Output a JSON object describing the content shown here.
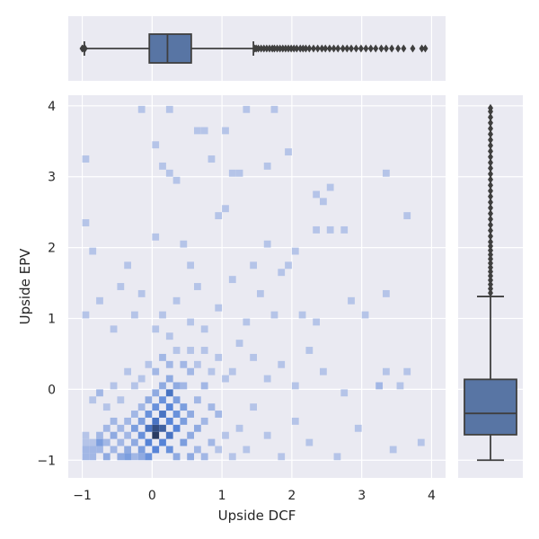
{
  "chart_data": {
    "type": "jointplot",
    "xlabel": "Upside DCF",
    "ylabel": "Upside EPV",
    "xlim": [
      -1.2,
      4.2
    ],
    "ylim": [
      -1.25,
      4.15
    ],
    "x_ticks": [
      -1,
      0,
      1,
      2,
      3,
      4
    ],
    "y_ticks": [
      -1,
      0,
      1,
      2,
      3,
      4
    ],
    "x_tick_labels": [
      "−1",
      "0",
      "1",
      "2",
      "3",
      "4"
    ],
    "y_tick_labels": [
      "−1",
      "0",
      "1",
      "2",
      "3",
      "4"
    ],
    "grid": true,
    "colors": {
      "panel_bg": "#eaeaf2",
      "grid": "#ffffff",
      "box_fill": "#5875a4",
      "box_line": "#3f3f3f",
      "hist_low": "#b5c4e8",
      "hist_mid": "#4f7fd6",
      "hist_high": "#2a3c62"
    },
    "histogram_2d": {
      "bin_size": 0.1,
      "cells": [
        {
          "x": -0.95,
          "y": -0.95,
          "level": 2
        },
        {
          "x": -0.95,
          "y": -0.85,
          "level": 2
        },
        {
          "x": -0.95,
          "y": -0.75,
          "level": 1
        },
        {
          "x": -0.95,
          "y": -0.65,
          "level": 1
        },
        {
          "x": -0.85,
          "y": -0.95,
          "level": 2
        },
        {
          "x": -0.85,
          "y": -0.85,
          "level": 2
        },
        {
          "x": -0.85,
          "y": -0.75,
          "level": 1
        },
        {
          "x": -0.75,
          "y": -0.75,
          "level": 4
        },
        {
          "x": -0.75,
          "y": -0.85,
          "level": 2
        },
        {
          "x": -0.75,
          "y": -0.65,
          "level": 2
        },
        {
          "x": -0.65,
          "y": -0.95,
          "level": 3
        },
        {
          "x": -0.65,
          "y": -0.75,
          "level": 2
        },
        {
          "x": -0.65,
          "y": -0.55,
          "level": 2
        },
        {
          "x": -0.55,
          "y": -0.85,
          "level": 2
        },
        {
          "x": -0.55,
          "y": -0.65,
          "level": 3
        },
        {
          "x": -0.55,
          "y": -0.45,
          "level": 2
        },
        {
          "x": -0.45,
          "y": -0.95,
          "level": 3
        },
        {
          "x": -0.45,
          "y": -0.75,
          "level": 2
        },
        {
          "x": -0.45,
          "y": -0.55,
          "level": 2
        },
        {
          "x": -0.35,
          "y": -0.95,
          "level": 4
        },
        {
          "x": -0.35,
          "y": -0.85,
          "level": 3
        },
        {
          "x": -0.35,
          "y": -0.65,
          "level": 2
        },
        {
          "x": -0.35,
          "y": -0.45,
          "level": 2
        },
        {
          "x": -0.25,
          "y": -0.95,
          "level": 2
        },
        {
          "x": -0.25,
          "y": -0.75,
          "level": 3
        },
        {
          "x": -0.25,
          "y": -0.55,
          "level": 4
        },
        {
          "x": -0.25,
          "y": -0.35,
          "level": 2
        },
        {
          "x": -0.15,
          "y": -0.95,
          "level": 3
        },
        {
          "x": -0.15,
          "y": -0.85,
          "level": 4
        },
        {
          "x": -0.15,
          "y": -0.65,
          "level": 5
        },
        {
          "x": -0.15,
          "y": -0.45,
          "level": 4
        },
        {
          "x": -0.15,
          "y": -0.25,
          "level": 2
        },
        {
          "x": -0.05,
          "y": -0.95,
          "level": 5
        },
        {
          "x": -0.05,
          "y": -0.75,
          "level": 6
        },
        {
          "x": -0.05,
          "y": -0.55,
          "level": 7
        },
        {
          "x": -0.05,
          "y": -0.35,
          "level": 5
        },
        {
          "x": -0.05,
          "y": -0.15,
          "level": 3
        },
        {
          "x": 0.05,
          "y": -0.85,
          "level": 6
        },
        {
          "x": 0.05,
          "y": -0.65,
          "level": 10
        },
        {
          "x": 0.05,
          "y": -0.55,
          "level": 9
        },
        {
          "x": 0.05,
          "y": -0.45,
          "level": 7
        },
        {
          "x": 0.05,
          "y": -0.25,
          "level": 5
        },
        {
          "x": 0.05,
          "y": -0.05,
          "level": 3
        },
        {
          "x": 0.15,
          "y": -0.75,
          "level": 6
        },
        {
          "x": 0.15,
          "y": -0.55,
          "level": 8
        },
        {
          "x": 0.15,
          "y": -0.35,
          "level": 7
        },
        {
          "x": 0.15,
          "y": -0.15,
          "level": 5
        },
        {
          "x": 0.15,
          "y": 0.05,
          "level": 3
        },
        {
          "x": 0.25,
          "y": -0.85,
          "level": 5
        },
        {
          "x": 0.25,
          "y": -0.65,
          "level": 7
        },
        {
          "x": 0.25,
          "y": -0.45,
          "level": 6
        },
        {
          "x": 0.25,
          "y": -0.25,
          "level": 6
        },
        {
          "x": 0.25,
          "y": -0.05,
          "level": 7
        },
        {
          "x": 0.25,
          "y": 0.15,
          "level": 3
        },
        {
          "x": 0.35,
          "y": -0.95,
          "level": 3
        },
        {
          "x": 0.35,
          "y": -0.55,
          "level": 6
        },
        {
          "x": 0.35,
          "y": -0.35,
          "level": 5
        },
        {
          "x": 0.35,
          "y": -0.15,
          "level": 4
        },
        {
          "x": 0.35,
          "y": 0.05,
          "level": 3
        },
        {
          "x": 0.45,
          "y": -0.75,
          "level": 4
        },
        {
          "x": 0.45,
          "y": -0.45,
          "level": 4
        },
        {
          "x": 0.45,
          "y": -0.25,
          "level": 4
        },
        {
          "x": 0.45,
          "y": 0.05,
          "level": 2
        },
        {
          "x": 0.55,
          "y": -0.95,
          "level": 3
        },
        {
          "x": 0.55,
          "y": -0.65,
          "level": 3
        },
        {
          "x": 0.55,
          "y": -0.35,
          "level": 3
        },
        {
          "x": 0.55,
          "y": 0.25,
          "level": 2
        },
        {
          "x": 0.65,
          "y": -0.85,
          "level": 2
        },
        {
          "x": 0.65,
          "y": -0.55,
          "level": 3
        },
        {
          "x": 0.65,
          "y": -0.15,
          "level": 2
        },
        {
          "x": 0.75,
          "y": -0.95,
          "level": 2
        },
        {
          "x": 0.75,
          "y": -0.45,
          "level": 2
        },
        {
          "x": 0.75,
          "y": 0.05,
          "level": 2
        },
        {
          "x": 0.85,
          "y": -0.75,
          "level": 2
        },
        {
          "x": 0.85,
          "y": -0.25,
          "level": 2
        },
        {
          "x": 0.95,
          "y": -0.85,
          "level": 1
        },
        {
          "x": 0.95,
          "y": -0.35,
          "level": 2
        },
        {
          "x": 1.05,
          "y": -0.65,
          "level": 1
        },
        {
          "x": 1.05,
          "y": 0.15,
          "level": 1
        },
        {
          "x": 1.15,
          "y": -0.95,
          "level": 1
        },
        {
          "x": 1.25,
          "y": -0.55,
          "level": 1
        },
        {
          "x": 1.35,
          "y": -0.85,
          "level": 1
        },
        {
          "x": 1.45,
          "y": -0.25,
          "level": 1
        },
        {
          "x": 1.65,
          "y": -0.65,
          "level": 1
        },
        {
          "x": 1.85,
          "y": -0.95,
          "level": 1
        },
        {
          "x": 2.05,
          "y": -0.45,
          "level": 1
        },
        {
          "x": 2.25,
          "y": -0.75,
          "level": 1
        },
        {
          "x": 2.65,
          "y": -0.95,
          "level": 1
        },
        {
          "x": 2.95,
          "y": -0.55,
          "level": 1
        },
        {
          "x": 3.45,
          "y": -0.85,
          "level": 1
        },
        {
          "x": 3.85,
          "y": -0.75,
          "level": 1
        },
        {
          "x": -0.85,
          "y": -0.15,
          "level": 1
        },
        {
          "x": -0.75,
          "y": -0.05,
          "level": 2
        },
        {
          "x": -0.65,
          "y": -0.25,
          "level": 1
        },
        {
          "x": -0.55,
          "y": 0.05,
          "level": 1
        },
        {
          "x": -0.45,
          "y": -0.15,
          "level": 1
        },
        {
          "x": -0.35,
          "y": 0.25,
          "level": 1
        },
        {
          "x": -0.25,
          "y": 0.05,
          "level": 1
        },
        {
          "x": -0.15,
          "y": 0.15,
          "level": 1
        },
        {
          "x": -0.05,
          "y": 0.35,
          "level": 1
        },
        {
          "x": 0.05,
          "y": 0.25,
          "level": 2
        },
        {
          "x": 0.15,
          "y": 0.45,
          "level": 2
        },
        {
          "x": 0.25,
          "y": 0.35,
          "level": 2
        },
        {
          "x": 0.35,
          "y": 0.55,
          "level": 1
        },
        {
          "x": 0.45,
          "y": 0.35,
          "level": 2
        },
        {
          "x": 0.55,
          "y": 0.55,
          "level": 1
        },
        {
          "x": 0.65,
          "y": 0.35,
          "level": 1
        },
        {
          "x": 0.75,
          "y": 0.55,
          "level": 1
        },
        {
          "x": 0.85,
          "y": 0.25,
          "level": 1
        },
        {
          "x": 0.95,
          "y": 0.45,
          "level": 1
        },
        {
          "x": 1.15,
          "y": 0.25,
          "level": 1
        },
        {
          "x": 1.25,
          "y": 0.65,
          "level": 1
        },
        {
          "x": 1.45,
          "y": 0.45,
          "level": 1
        },
        {
          "x": 1.65,
          "y": 0.15,
          "level": 1
        },
        {
          "x": 1.85,
          "y": 0.35,
          "level": 1
        },
        {
          "x": 2.05,
          "y": 0.05,
          "level": 1
        },
        {
          "x": 2.25,
          "y": 0.55,
          "level": 1
        },
        {
          "x": 2.45,
          "y": 0.25,
          "level": 1
        },
        {
          "x": 2.75,
          "y": -0.05,
          "level": 1
        },
        {
          "x": 3.25,
          "y": 0.05,
          "level": 2
        },
        {
          "x": 3.35,
          "y": 0.25,
          "level": 1
        },
        {
          "x": 3.65,
          "y": 0.25,
          "level": 1
        },
        {
          "x": 3.55,
          "y": 0.05,
          "level": 1
        },
        {
          "x": -0.95,
          "y": 1.05,
          "level": 1
        },
        {
          "x": -0.75,
          "y": 1.25,
          "level": 1
        },
        {
          "x": -0.55,
          "y": 0.85,
          "level": 1
        },
        {
          "x": -0.45,
          "y": 1.45,
          "level": 1
        },
        {
          "x": -0.25,
          "y": 1.05,
          "level": 1
        },
        {
          "x": -0.15,
          "y": 1.35,
          "level": 1
        },
        {
          "x": 0.05,
          "y": 0.85,
          "level": 1
        },
        {
          "x": 0.15,
          "y": 1.05,
          "level": 1
        },
        {
          "x": 0.25,
          "y": 0.75,
          "level": 1
        },
        {
          "x": 0.35,
          "y": 1.25,
          "level": 1
        },
        {
          "x": 0.55,
          "y": 0.95,
          "level": 1
        },
        {
          "x": 0.65,
          "y": 1.45,
          "level": 1
        },
        {
          "x": 0.75,
          "y": 0.85,
          "level": 1
        },
        {
          "x": 0.95,
          "y": 1.15,
          "level": 1
        },
        {
          "x": 1.15,
          "y": 1.55,
          "level": 1
        },
        {
          "x": 1.35,
          "y": 0.95,
          "level": 1
        },
        {
          "x": 1.55,
          "y": 1.35,
          "level": 1
        },
        {
          "x": 1.75,
          "y": 1.05,
          "level": 1
        },
        {
          "x": 1.95,
          "y": 1.75,
          "level": 1
        },
        {
          "x": 2.15,
          "y": 1.05,
          "level": 1
        },
        {
          "x": 2.35,
          "y": 0.95,
          "level": 1
        },
        {
          "x": 2.85,
          "y": 1.25,
          "level": 1
        },
        {
          "x": 3.05,
          "y": 1.05,
          "level": 1
        },
        {
          "x": 3.35,
          "y": 1.35,
          "level": 1
        },
        {
          "x": -0.95,
          "y": 2.35,
          "level": 1
        },
        {
          "x": -0.85,
          "y": 1.95,
          "level": 1
        },
        {
          "x": -0.35,
          "y": 1.75,
          "level": 1
        },
        {
          "x": 0.05,
          "y": 2.15,
          "level": 1
        },
        {
          "x": 0.45,
          "y": 2.05,
          "level": 1
        },
        {
          "x": 0.55,
          "y": 1.75,
          "level": 1
        },
        {
          "x": 0.95,
          "y": 2.45,
          "level": 1
        },
        {
          "x": 1.05,
          "y": 2.55,
          "level": 1
        },
        {
          "x": 1.45,
          "y": 1.75,
          "level": 1
        },
        {
          "x": 1.65,
          "y": 2.05,
          "level": 1
        },
        {
          "x": 1.85,
          "y": 1.65,
          "level": 1
        },
        {
          "x": 2.05,
          "y": 1.95,
          "level": 1
        },
        {
          "x": 2.35,
          "y": 2.25,
          "level": 1
        },
        {
          "x": 2.55,
          "y": 2.25,
          "level": 1
        },
        {
          "x": 2.75,
          "y": 2.25,
          "level": 1
        },
        {
          "x": 2.45,
          "y": 2.65,
          "level": 1
        },
        {
          "x": 3.65,
          "y": 2.45,
          "level": 1
        },
        {
          "x": -0.95,
          "y": 3.25,
          "level": 1
        },
        {
          "x": -0.15,
          "y": 3.95,
          "level": 1
        },
        {
          "x": 0.05,
          "y": 3.45,
          "level": 1
        },
        {
          "x": 0.15,
          "y": 3.15,
          "level": 1
        },
        {
          "x": 0.25,
          "y": 3.05,
          "level": 1
        },
        {
          "x": 0.35,
          "y": 2.95,
          "level": 1
        },
        {
          "x": 0.25,
          "y": 3.95,
          "level": 1
        },
        {
          "x": 0.65,
          "y": 3.65,
          "level": 1
        },
        {
          "x": 0.75,
          "y": 3.65,
          "level": 1
        },
        {
          "x": 0.85,
          "y": 3.25,
          "level": 1
        },
        {
          "x": 1.05,
          "y": 3.65,
          "level": 1
        },
        {
          "x": 1.15,
          "y": 3.05,
          "level": 1
        },
        {
          "x": 1.25,
          "y": 3.05,
          "level": 1
        },
        {
          "x": 1.35,
          "y": 3.95,
          "level": 1
        },
        {
          "x": 1.65,
          "y": 3.15,
          "level": 1
        },
        {
          "x": 1.75,
          "y": 3.95,
          "level": 1
        },
        {
          "x": 1.95,
          "y": 3.35,
          "level": 1
        },
        {
          "x": 2.35,
          "y": 2.75,
          "level": 1
        },
        {
          "x": 2.55,
          "y": 2.85,
          "level": 1
        },
        {
          "x": 3.35,
          "y": 3.05,
          "level": 1
        }
      ]
    },
    "marginal_x_box": {
      "whisker_low": -0.97,
      "q1": -0.04,
      "median": 0.22,
      "q3": 0.56,
      "whisker_high": 1.45,
      "outliers": [
        -1.0,
        -0.98,
        -0.96,
        1.47,
        1.49,
        1.52,
        1.56,
        1.6,
        1.64,
        1.68,
        1.72,
        1.75,
        1.79,
        1.83,
        1.87,
        1.91,
        1.95,
        1.99,
        2.03,
        2.07,
        2.12,
        2.16,
        2.2,
        2.25,
        2.31,
        2.37,
        2.43,
        2.48,
        2.54,
        2.6,
        2.66,
        2.73,
        2.79,
        2.85,
        2.92,
        2.99,
        3.06,
        3.13,
        3.2,
        3.28,
        3.35,
        3.43,
        3.52,
        3.6,
        3.73,
        3.86,
        3.91
      ]
    },
    "marginal_y_box": {
      "whisker_low": -1.0,
      "q1": -0.64,
      "median": -0.34,
      "q3": 0.14,
      "whisker_high": 1.31,
      "outliers": [
        1.36,
        1.42,
        1.48,
        1.54,
        1.6,
        1.66,
        1.72,
        1.78,
        1.84,
        1.9,
        1.96,
        2.02,
        2.08,
        2.16,
        2.24,
        2.32,
        2.4,
        2.48,
        2.56,
        2.64,
        2.72,
        2.8,
        2.88,
        2.96,
        3.04,
        3.12,
        3.2,
        3.28,
        3.36,
        3.44,
        3.52,
        3.6,
        3.68,
        3.76,
        3.84,
        3.92,
        3.97
      ]
    }
  }
}
